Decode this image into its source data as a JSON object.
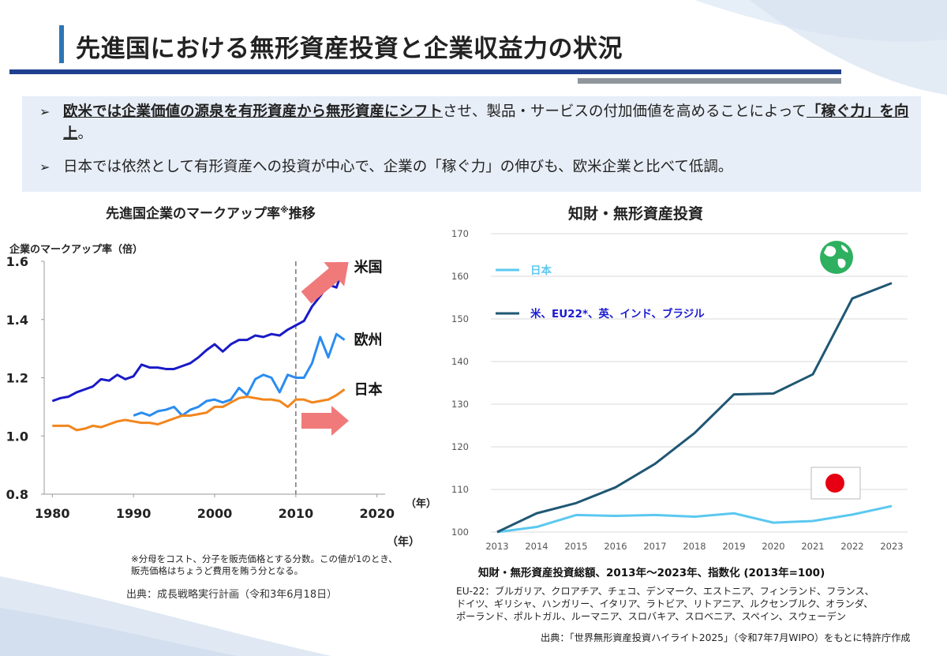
{
  "page": {
    "title": "先進国における無形資産投資と企業収益力の状況",
    "bullets": [
      {
        "segments": [
          {
            "text": "欧米では企業価値の源泉を有形資産から無形資産にシフト",
            "strong": true
          },
          {
            "text": "させ、製品・サービスの付加価値を高めることによって",
            "strong": false
          },
          {
            "text": "「稼ぐ力」を向上",
            "strong": true
          },
          {
            "text": "。",
            "strong": false
          }
        ]
      },
      {
        "segments": [
          {
            "text": "日本では依然として有形資産への投資が中心で、企業の「稼ぐ力」の伸びも、欧米企業と比べて低調。",
            "strong": false
          }
        ]
      }
    ],
    "bullet_mark": "➢"
  },
  "left_panel": {
    "title": "先進国企業のマークアップ率",
    "title_sup": "※",
    "title_suffix": "推移",
    "note_line1": "※分母をコスト、分子を販売価格とする分数。この値が1のとき、",
    "note_line2": "販売価格はちょうど費用を賄う分となる。",
    "source": "出典：成長戦略実行計画（令和3年6月18日）",
    "year_unit_outer": "（年）"
  },
  "right_panel": {
    "title": "知財・無形資産投資",
    "caption": "知財・無形資産投資総額、2013年～2023年、指数化 (2013年=100)",
    "eu_note_1": "EU-22：ブルガリア、クロアチア、チェコ、デンマーク、エストニア、フィンランド、フランス、",
    "eu_note_2": "ドイツ、ギリシャ、ハンガリー、イタリア、ラトビア、リトアニア、ルクセンブルク、オランダ、",
    "eu_note_3": "ポーランド、ポルトガル、ルーマニア、スロバキア、スロベニア、スペイン、スウェーデン",
    "source": "出典：「世界無形資産投資ハイライト2025」（令和7年7月WIPO）をもとに特許庁作成"
  },
  "chart_data": [
    {
      "type": "line",
      "title": "先進国企業のマークアップ率※推移",
      "ylabel": "企業のマークアップ率（倍）",
      "xlabel": "（年）",
      "xlim": [
        1979,
        2021
      ],
      "ylim": [
        0.8,
        1.6
      ],
      "xticks": [
        "1980",
        "1990",
        "2000",
        "2010",
        "2020"
      ],
      "yticks": [
        "0.8",
        "1.0",
        "1.2",
        "1.4",
        "1.6"
      ],
      "vline_x": 2010,
      "series": [
        {
          "name": "米国",
          "color": "#1a1ac8",
          "x": [
            1980,
            1981,
            1982,
            1983,
            1984,
            1985,
            1986,
            1987,
            1988,
            1989,
            1990,
            1991,
            1992,
            1993,
            1994,
            1995,
            1996,
            1997,
            1998,
            1999,
            2000,
            2001,
            2002,
            2003,
            2004,
            2005,
            2006,
            2007,
            2008,
            2009,
            2010,
            2011,
            2012,
            2013,
            2014,
            2015,
            2016
          ],
          "y": [
            1.12,
            1.13,
            1.135,
            1.15,
            1.16,
            1.17,
            1.195,
            1.19,
            1.21,
            1.195,
            1.205,
            1.245,
            1.235,
            1.235,
            1.23,
            1.23,
            1.24,
            1.25,
            1.27,
            1.295,
            1.315,
            1.29,
            1.315,
            1.33,
            1.33,
            1.345,
            1.34,
            1.35,
            1.345,
            1.365,
            1.38,
            1.395,
            1.445,
            1.48,
            1.52,
            1.51,
            1.59
          ]
        },
        {
          "name": "欧州",
          "color": "#2a8cf0",
          "x": [
            1990,
            1991,
            1992,
            1993,
            1994,
            1995,
            1996,
            1997,
            1998,
            1999,
            2000,
            2001,
            2002,
            2003,
            2004,
            2005,
            2006,
            2007,
            2008,
            2009,
            2010,
            2011,
            2012,
            2013,
            2014,
            2015,
            2016
          ],
          "y": [
            1.07,
            1.08,
            1.07,
            1.085,
            1.09,
            1.1,
            1.07,
            1.09,
            1.1,
            1.12,
            1.125,
            1.115,
            1.125,
            1.165,
            1.14,
            1.195,
            1.21,
            1.2,
            1.15,
            1.21,
            1.2,
            1.2,
            1.25,
            1.34,
            1.27,
            1.35,
            1.33
          ]
        },
        {
          "name": "日本",
          "color": "#f2861e",
          "x": [
            1980,
            1981,
            1982,
            1983,
            1984,
            1985,
            1986,
            1987,
            1988,
            1989,
            1990,
            1991,
            1992,
            1993,
            1994,
            1995,
            1996,
            1997,
            1998,
            1999,
            2000,
            2001,
            2002,
            2003,
            2004,
            2005,
            2006,
            2007,
            2008,
            2009,
            2010,
            2011,
            2012,
            2013,
            2014,
            2015,
            2016
          ],
          "y": [
            1.035,
            1.035,
            1.035,
            1.02,
            1.025,
            1.035,
            1.03,
            1.04,
            1.05,
            1.055,
            1.05,
            1.045,
            1.045,
            1.04,
            1.05,
            1.06,
            1.07,
            1.07,
            1.075,
            1.08,
            1.1,
            1.1,
            1.115,
            1.13,
            1.135,
            1.13,
            1.125,
            1.125,
            1.12,
            1.1,
            1.125,
            1.125,
            1.115,
            1.12,
            1.125,
            1.14,
            1.16
          ]
        }
      ]
    },
    {
      "type": "line",
      "title": "知財・無形資産投資総額、2013年～2023年、指数化 (2013年=100)",
      "categories": [
        "2013",
        "2014",
        "2015",
        "2016",
        "2017",
        "2018",
        "2019",
        "2020",
        "2021",
        "2022",
        "2023"
      ],
      "ylim": [
        100,
        170
      ],
      "yticks": [
        "100",
        "110",
        "120",
        "130",
        "140",
        "150",
        "160",
        "170"
      ],
      "series": [
        {
          "name": "日本",
          "color": "#5bc8f0",
          "values": [
            100,
            101.2,
            104,
            103.8,
            104,
            103.6,
            104.4,
            102.2,
            102.6,
            104.1,
            106.1
          ]
        },
        {
          "name": "米、EU22*、英、インド、ブラジル",
          "color": "#1f5773",
          "values": [
            100,
            104.4,
            106.8,
            110.5,
            116,
            123.2,
            132.3,
            132.5,
            137,
            154.8,
            158.4
          ]
        }
      ]
    }
  ]
}
